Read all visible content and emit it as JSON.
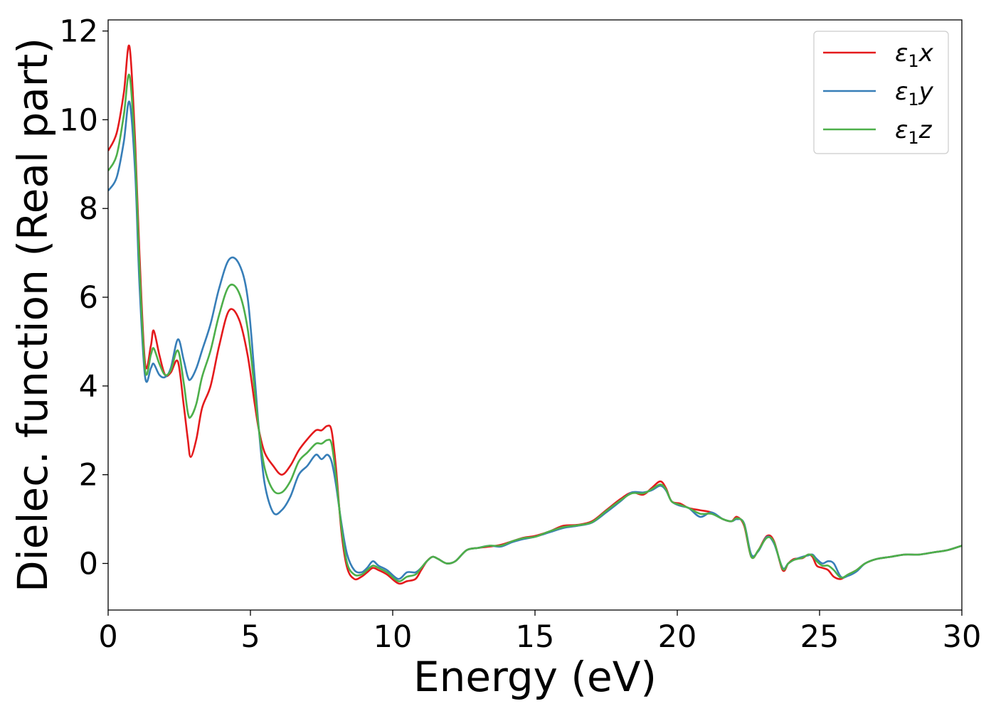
{
  "chart_data": {
    "type": "line",
    "title": "",
    "xlabel": "Energy (eV)",
    "ylabel": "Dielec. function (Real part)",
    "xlim": [
      0,
      30
    ],
    "ylim": [
      -1.05,
      12.25
    ],
    "xticks": [
      0,
      5,
      10,
      15,
      20,
      25,
      30
    ],
    "yticks": [
      0,
      2,
      4,
      6,
      8,
      10,
      12
    ],
    "grid": false,
    "legend_position": "upper-right",
    "series": [
      {
        "name": "ε₁x",
        "legend_main": "ε",
        "legend_sub": "1",
        "legend_suffix": "x",
        "color": "#e41a1c",
        "x": [
          0,
          0.3,
          0.55,
          0.75,
          0.95,
          1.1,
          1.3,
          1.5,
          1.6,
          1.8,
          2.0,
          2.2,
          2.45,
          2.65,
          2.8,
          2.9,
          3.1,
          3.3,
          3.6,
          3.9,
          4.25,
          4.6,
          4.9,
          5.15,
          5.3,
          5.5,
          5.8,
          6.1,
          6.4,
          6.7,
          7.0,
          7.3,
          7.5,
          7.7,
          7.85,
          8.0,
          8.2,
          8.4,
          8.65,
          8.9,
          9.1,
          9.3,
          9.5,
          9.8,
          10.2,
          10.5,
          10.8,
          11.0,
          11.2,
          11.4,
          11.6,
          11.9,
          12.2,
          12.6,
          13.0,
          13.4,
          13.8,
          14.2,
          14.6,
          15.0,
          15.5,
          16.0,
          16.5,
          17.0,
          17.5,
          18.0,
          18.4,
          18.8,
          19.1,
          19.4,
          19.6,
          19.8,
          20.1,
          20.4,
          20.8,
          21.2,
          21.6,
          21.9,
          22.1,
          22.35,
          22.6,
          22.85,
          23.15,
          23.4,
          23.7,
          23.9,
          24.1,
          24.4,
          24.6,
          24.75,
          24.9,
          25.1,
          25.3,
          25.5,
          25.75,
          26.0,
          26.3,
          26.6,
          27.0,
          27.5,
          28.0,
          28.5,
          29.0,
          29.5,
          30.0
        ],
        "y": [
          9.3,
          9.7,
          10.6,
          11.65,
          9.5,
          7.0,
          4.5,
          4.9,
          5.25,
          4.7,
          4.25,
          4.3,
          4.55,
          3.6,
          2.8,
          2.4,
          2.8,
          3.5,
          4.0,
          4.9,
          5.7,
          5.5,
          4.7,
          3.6,
          3.0,
          2.5,
          2.2,
          2.0,
          2.2,
          2.55,
          2.8,
          3.0,
          3.0,
          3.1,
          3.0,
          2.2,
          0.7,
          -0.1,
          -0.35,
          -0.3,
          -0.2,
          -0.1,
          -0.15,
          -0.25,
          -0.45,
          -0.4,
          -0.35,
          -0.15,
          0.05,
          0.15,
          0.1,
          0.0,
          0.05,
          0.3,
          0.35,
          0.38,
          0.42,
          0.5,
          0.58,
          0.62,
          0.72,
          0.85,
          0.87,
          0.95,
          1.2,
          1.45,
          1.6,
          1.55,
          1.7,
          1.85,
          1.7,
          1.4,
          1.35,
          1.25,
          1.2,
          1.15,
          1.0,
          0.95,
          1.05,
          0.85,
          0.15,
          0.3,
          0.62,
          0.5,
          -0.15,
          0.0,
          0.1,
          0.12,
          0.2,
          0.15,
          -0.05,
          -0.1,
          -0.15,
          -0.3,
          -0.35,
          -0.25,
          -0.15,
          0.0,
          0.1,
          0.15,
          0.2,
          0.2,
          0.25,
          0.3,
          0.4
        ]
      },
      {
        "name": "ε₁y",
        "legend_main": "ε",
        "legend_sub": "1",
        "legend_suffix": "y",
        "color": "#377eb8",
        "x": [
          0,
          0.3,
          0.55,
          0.75,
          0.95,
          1.1,
          1.3,
          1.5,
          1.6,
          1.8,
          2.0,
          2.2,
          2.45,
          2.65,
          2.8,
          2.9,
          3.1,
          3.3,
          3.6,
          3.9,
          4.25,
          4.6,
          4.9,
          5.15,
          5.3,
          5.5,
          5.8,
          6.1,
          6.4,
          6.7,
          7.0,
          7.3,
          7.5,
          7.7,
          7.85,
          8.0,
          8.2,
          8.4,
          8.65,
          8.9,
          9.1,
          9.3,
          9.5,
          9.8,
          10.2,
          10.5,
          10.8,
          11.0,
          11.2,
          11.4,
          11.6,
          11.9,
          12.2,
          12.6,
          13.0,
          13.4,
          13.8,
          14.2,
          14.6,
          15.0,
          15.5,
          16.0,
          16.5,
          17.0,
          17.5,
          18.0,
          18.4,
          18.8,
          19.1,
          19.4,
          19.6,
          19.8,
          20.1,
          20.4,
          20.8,
          21.2,
          21.6,
          21.9,
          22.1,
          22.35,
          22.6,
          22.85,
          23.15,
          23.4,
          23.7,
          23.9,
          24.1,
          24.4,
          24.6,
          24.75,
          24.9,
          25.1,
          25.3,
          25.5,
          25.75,
          26.0,
          26.3,
          26.6,
          27.0,
          27.5,
          28.0,
          28.5,
          29.0,
          29.5,
          30.0
        ],
        "y": [
          8.4,
          8.7,
          9.5,
          10.4,
          8.8,
          6.3,
          4.2,
          4.4,
          4.5,
          4.25,
          4.2,
          4.4,
          5.05,
          4.6,
          4.2,
          4.15,
          4.4,
          4.8,
          5.4,
          6.2,
          6.85,
          6.75,
          6.0,
          4.2,
          3.0,
          1.8,
          1.15,
          1.2,
          1.5,
          2.0,
          2.2,
          2.45,
          2.35,
          2.45,
          2.3,
          1.8,
          0.9,
          0.2,
          -0.15,
          -0.2,
          -0.1,
          0.05,
          -0.05,
          -0.15,
          -0.35,
          -0.2,
          -0.2,
          -0.1,
          0.05,
          0.15,
          0.1,
          0.0,
          0.05,
          0.3,
          0.35,
          0.4,
          0.38,
          0.48,
          0.55,
          0.6,
          0.7,
          0.8,
          0.85,
          0.92,
          1.15,
          1.4,
          1.6,
          1.6,
          1.65,
          1.75,
          1.65,
          1.4,
          1.3,
          1.25,
          1.05,
          1.15,
          1.0,
          0.95,
          1.0,
          0.9,
          0.2,
          0.28,
          0.6,
          0.45,
          -0.1,
          0.0,
          0.08,
          0.15,
          0.18,
          0.2,
          0.1,
          0.0,
          0.05,
          0.0,
          -0.3,
          -0.28,
          -0.18,
          0.0,
          0.1,
          0.15,
          0.2,
          0.2,
          0.25,
          0.3,
          0.4
        ]
      },
      {
        "name": "ε₁z",
        "legend_main": "ε",
        "legend_sub": "1",
        "legend_suffix": "z",
        "color": "#4daf4a",
        "x": [
          0,
          0.3,
          0.55,
          0.75,
          0.95,
          1.1,
          1.3,
          1.5,
          1.6,
          1.8,
          2.0,
          2.2,
          2.45,
          2.65,
          2.8,
          2.9,
          3.1,
          3.3,
          3.6,
          3.9,
          4.25,
          4.6,
          4.9,
          5.15,
          5.3,
          5.5,
          5.8,
          6.1,
          6.4,
          6.7,
          7.0,
          7.3,
          7.5,
          7.7,
          7.85,
          8.0,
          8.2,
          8.4,
          8.65,
          8.9,
          9.1,
          9.3,
          9.5,
          9.8,
          10.2,
          10.5,
          10.8,
          11.0,
          11.2,
          11.4,
          11.6,
          11.9,
          12.2,
          12.6,
          13.0,
          13.4,
          13.8,
          14.2,
          14.6,
          15.0,
          15.5,
          16.0,
          16.5,
          17.0,
          17.5,
          18.0,
          18.4,
          18.8,
          19.1,
          19.4,
          19.6,
          19.8,
          20.1,
          20.4,
          20.8,
          21.2,
          21.6,
          21.9,
          22.1,
          22.35,
          22.6,
          22.85,
          23.15,
          23.4,
          23.7,
          23.9,
          24.1,
          24.4,
          24.6,
          24.75,
          24.9,
          25.1,
          25.3,
          25.5,
          25.75,
          26.0,
          26.3,
          26.6,
          27.0,
          27.5,
          28.0,
          28.5,
          29.0,
          29.5,
          30.0
        ],
        "y": [
          8.85,
          9.2,
          10.1,
          11.0,
          9.2,
          6.7,
          4.35,
          4.7,
          4.85,
          4.5,
          4.25,
          4.35,
          4.8,
          4.1,
          3.4,
          3.3,
          3.6,
          4.2,
          4.8,
          5.6,
          6.25,
          6.1,
          5.3,
          3.9,
          3.0,
          2.15,
          1.65,
          1.6,
          1.85,
          2.3,
          2.5,
          2.7,
          2.7,
          2.78,
          2.7,
          2.0,
          0.8,
          0.0,
          -0.25,
          -0.25,
          -0.15,
          -0.05,
          -0.1,
          -0.2,
          -0.4,
          -0.3,
          -0.25,
          -0.1,
          0.05,
          0.15,
          0.1,
          0.0,
          0.05,
          0.3,
          0.35,
          0.4,
          0.4,
          0.5,
          0.57,
          0.6,
          0.72,
          0.82,
          0.86,
          0.93,
          1.18,
          1.42,
          1.58,
          1.58,
          1.67,
          1.78,
          1.67,
          1.4,
          1.32,
          1.25,
          1.12,
          1.12,
          1.0,
          0.95,
          1.02,
          0.88,
          0.15,
          0.3,
          0.58,
          0.48,
          -0.12,
          0.0,
          0.08,
          0.13,
          0.2,
          0.18,
          0.05,
          -0.05,
          -0.05,
          -0.15,
          -0.32,
          -0.25,
          -0.15,
          0.0,
          0.1,
          0.15,
          0.2,
          0.2,
          0.25,
          0.3,
          0.4
        ]
      }
    ]
  }
}
